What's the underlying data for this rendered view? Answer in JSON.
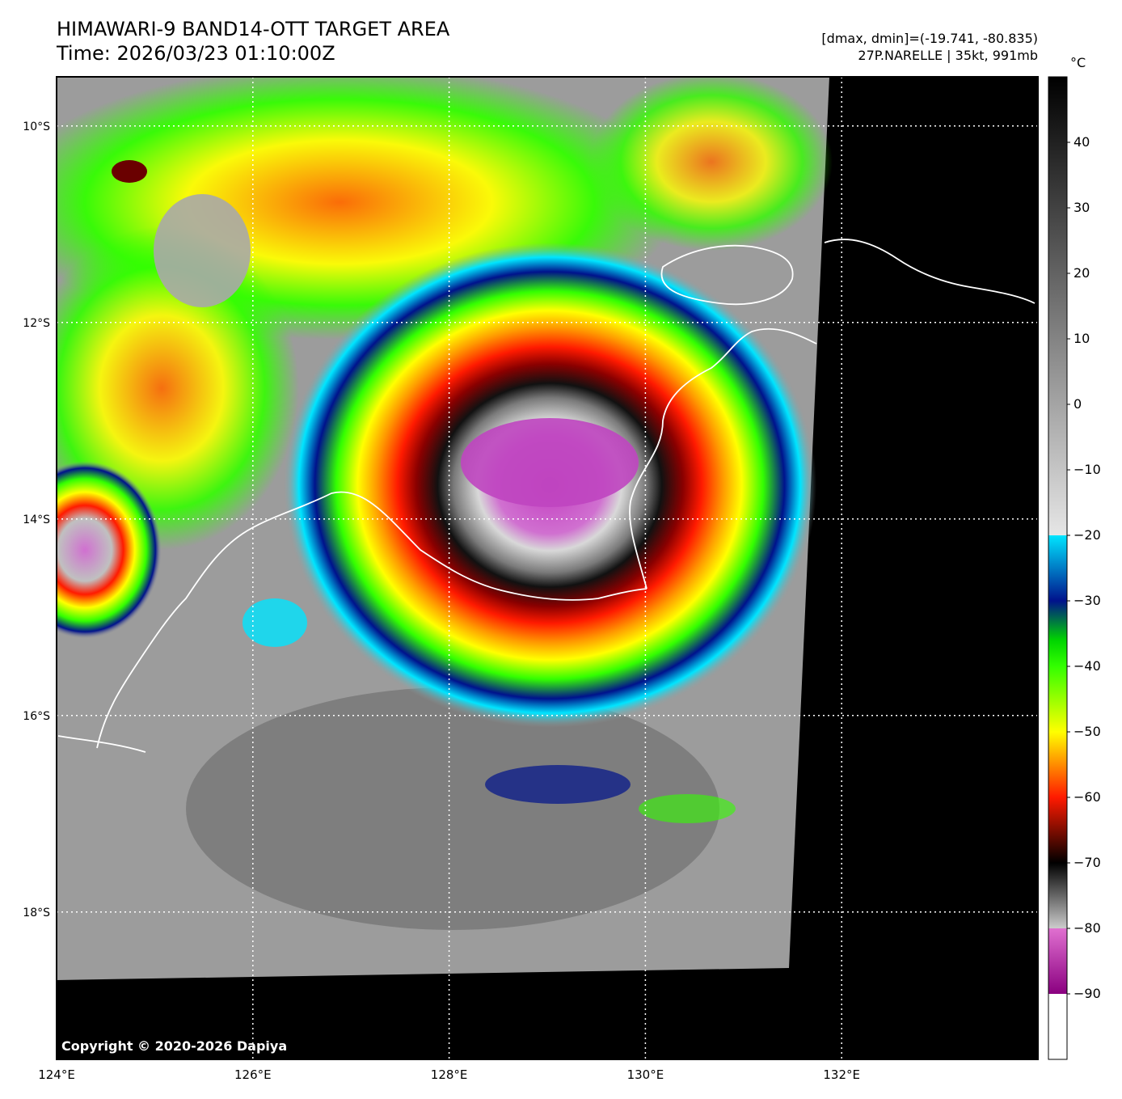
{
  "title": "HIMAWARI-9 BAND14-OTT TARGET AREA",
  "time_line": "Time: 2026/03/23 01:10:00Z",
  "stats_line": "[dmax, dmin]=(-19.741, -80.835)",
  "storm_line": "27P.NARELLE | 35kt, 991mb",
  "copyright": "Copyright © 2020-2026 Dapiya",
  "map": {
    "lon_range": [
      124,
      134
    ],
    "lat_range": [
      -19.5,
      -9.5
    ],
    "lon_ticks": [
      {
        "value": 124,
        "label": "124°E"
      },
      {
        "value": 126,
        "label": "126°E"
      },
      {
        "value": 128,
        "label": "128°E"
      },
      {
        "value": 130,
        "label": "130°E"
      },
      {
        "value": 132,
        "label": "132°E"
      }
    ],
    "lat_ticks": [
      {
        "value": -10,
        "label": "10°S"
      },
      {
        "value": -12,
        "label": "12°S"
      },
      {
        "value": -14,
        "label": "14°S"
      },
      {
        "value": -16,
        "label": "16°S"
      },
      {
        "value": -18,
        "label": "18°S"
      }
    ],
    "storm_center": {
      "lon": 129.1,
      "lat": -13.6
    }
  },
  "colorbar": {
    "unit": "°C",
    "range": [
      -100,
      50
    ],
    "ticks": [
      {
        "value": 40,
        "label": "40"
      },
      {
        "value": 30,
        "label": "30"
      },
      {
        "value": 20,
        "label": "20"
      },
      {
        "value": 10,
        "label": "10"
      },
      {
        "value": 0,
        "label": "0"
      },
      {
        "value": -10,
        "label": "−10"
      },
      {
        "value": -20,
        "label": "−20"
      },
      {
        "value": -30,
        "label": "−30"
      },
      {
        "value": -40,
        "label": "−40"
      },
      {
        "value": -50,
        "label": "−50"
      },
      {
        "value": -60,
        "label": "−60"
      },
      {
        "value": -70,
        "label": "−70"
      },
      {
        "value": -80,
        "label": "−80"
      },
      {
        "value": -90,
        "label": "−90"
      }
    ],
    "stops": [
      {
        "t": 50,
        "color": "#000000"
      },
      {
        "t": -20,
        "color": "#e6e6e6"
      },
      {
        "t": -20,
        "color": "#00e5ff"
      },
      {
        "t": -30,
        "color": "#00128c"
      },
      {
        "t": -36,
        "color": "#00d400"
      },
      {
        "t": -40,
        "color": "#33ff00"
      },
      {
        "t": -50,
        "color": "#ffff00"
      },
      {
        "t": -60,
        "color": "#ff1a00"
      },
      {
        "t": -70,
        "color": "#000000"
      },
      {
        "t": -80,
        "color": "#cccccc"
      },
      {
        "t": -80,
        "color": "#e070d0"
      },
      {
        "t": -90,
        "color": "#8a0080"
      },
      {
        "t": -90,
        "color": "#ffffff"
      },
      {
        "t": -100,
        "color": "#ffffff"
      }
    ]
  }
}
